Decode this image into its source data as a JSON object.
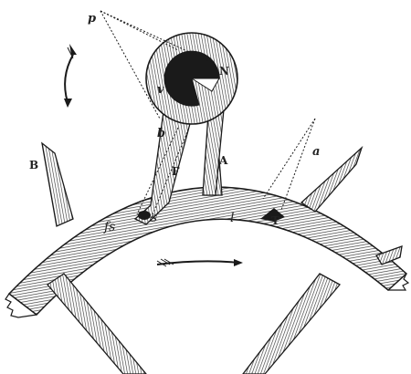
{
  "labels": {
    "p": "p",
    "v": "v",
    "N": "N",
    "b": "b",
    "F": "F",
    "A": "A",
    "B": "B",
    "a": "a",
    "fs": "fs",
    "s": "s",
    "l": "l",
    "T": "T"
  },
  "colors": {
    "ink": "#1a1a1a",
    "hatch": "#3a3a3a",
    "paper": "#ffffff"
  }
}
